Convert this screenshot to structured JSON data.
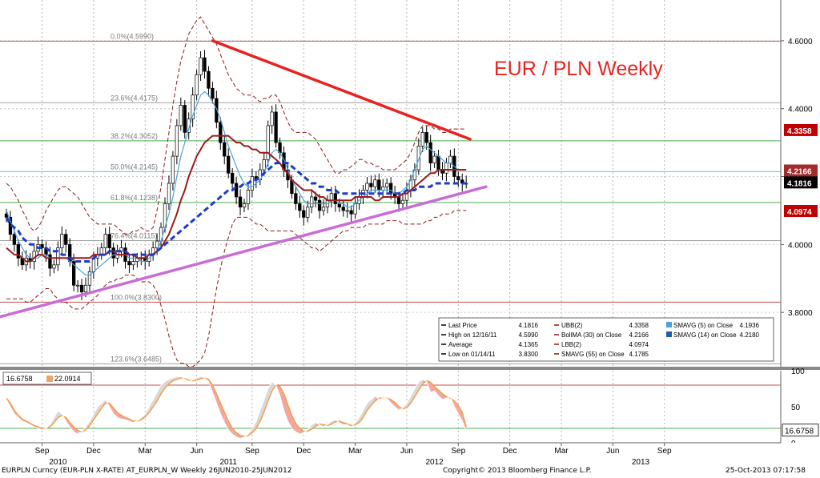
{
  "chart_data": {
    "type": "line",
    "title": "EUR / PLN Weekly",
    "price_panel": {
      "ylim": [
        3.64,
        4.72
      ],
      "ytick_labels": [
        "4.6000",
        "4.4000",
        "4.2000",
        "4.0000",
        "3.8000"
      ],
      "ytick_values": [
        4.6,
        4.4,
        4.2,
        4.0,
        3.8
      ],
      "fibonacci": [
        {
          "label": "0.0%(4.5990)",
          "value": 4.599,
          "color": "#c0504d"
        },
        {
          "label": "23.6%(4.4175)",
          "value": 4.4175,
          "color": "#a0a0a0"
        },
        {
          "label": "38.2%(4.3052)",
          "value": 4.3052,
          "color": "#4caf50"
        },
        {
          "label": "50.0%(4.2145)",
          "value": 4.2145,
          "color": "#5ec8e8"
        },
        {
          "label": "61.8%(4.1238)",
          "value": 4.1238,
          "color": "#4caf50"
        },
        {
          "label": "76.4%(4.0115)",
          "value": 4.0115,
          "color": "#a0a0a0"
        },
        {
          "label": "100.0%(3.8300)",
          "value": 3.83,
          "color": "#c0504d"
        },
        {
          "label": "123.6%(3.6485)",
          "value": 3.6485,
          "color": "#a0a0a0"
        }
      ],
      "price_labels": [
        {
          "text": "4.3358",
          "value": 4.3358,
          "color": "#c00000"
        },
        {
          "text": "4.2166",
          "value": 4.2166,
          "color": "#a52a2a"
        },
        {
          "text": "4.1816",
          "value": 4.1816,
          "color": "#000000"
        },
        {
          "text": "4.0974",
          "value": 4.0974,
          "color": "#c00000"
        }
      ],
      "close": [
        4.08,
        4.03,
        4.0,
        3.96,
        3.94,
        3.96,
        3.95,
        3.98,
        4.0,
        3.99,
        3.97,
        3.93,
        3.94,
        3.99,
        4.03,
        4.0,
        3.95,
        3.88,
        3.88,
        3.86,
        3.88,
        3.92,
        3.96,
        3.97,
        3.99,
        4.03,
        3.99,
        3.96,
        3.98,
        3.99,
        3.95,
        3.94,
        3.95,
        3.96,
        3.96,
        3.95,
        3.97,
        3.99,
        4.01,
        4.05,
        4.12,
        4.18,
        4.26,
        4.35,
        4.41,
        4.33,
        4.37,
        4.44,
        4.5,
        4.55,
        4.51,
        4.46,
        4.43,
        4.36,
        4.3,
        4.26,
        4.21,
        4.18,
        4.14,
        4.11,
        4.12,
        4.16,
        4.2,
        4.19,
        4.22,
        4.25,
        4.35,
        4.39,
        4.3,
        4.27,
        4.22,
        4.19,
        4.15,
        4.12,
        4.1,
        4.08,
        4.11,
        4.14,
        4.13,
        4.1,
        4.11,
        4.13,
        4.15,
        4.12,
        4.11,
        4.1,
        4.1,
        4.09,
        4.12,
        4.14,
        4.16,
        4.18,
        4.17,
        4.19,
        4.16,
        4.17,
        4.18,
        4.15,
        4.14,
        4.12,
        4.13,
        4.16,
        4.19,
        4.22,
        4.29,
        4.33,
        4.3,
        4.24,
        4.26,
        4.22,
        4.21,
        4.24,
        4.26,
        4.2,
        4.19,
        4.18,
        4.18
      ],
      "bb_upper": [
        4.18,
        4.17,
        4.15,
        4.13,
        4.1,
        4.08,
        4.05,
        4.04,
        4.05,
        4.07,
        4.1,
        4.12,
        4.14,
        4.16,
        4.17,
        4.17,
        4.16,
        4.15,
        4.14,
        4.12,
        4.1,
        4.08,
        4.07,
        4.06,
        4.06,
        4.06,
        4.06,
        4.06,
        4.05,
        4.04,
        4.03,
        4.03,
        4.04,
        4.04,
        4.05,
        4.04,
        4.04,
        4.05,
        4.1,
        4.17,
        4.25,
        4.33,
        4.41,
        4.48,
        4.54,
        4.58,
        4.62,
        4.64,
        4.66,
        4.67,
        4.65,
        4.63,
        4.61,
        4.59,
        4.56,
        4.53,
        4.5,
        4.48,
        4.46,
        4.45,
        4.44,
        4.44,
        4.44,
        4.43,
        4.42,
        4.43,
        4.43,
        4.44,
        4.44,
        4.42,
        4.39,
        4.36,
        4.34,
        4.33,
        4.33,
        4.33,
        4.33,
        4.32,
        4.31,
        4.29,
        4.27,
        4.25,
        4.23,
        4.21,
        4.21,
        4.22,
        4.22,
        4.23,
        4.24,
        4.25,
        4.25,
        4.24,
        4.24,
        4.23,
        4.23,
        4.22,
        4.22,
        4.22,
        4.22,
        4.23,
        4.24,
        4.25,
        4.27,
        4.3,
        4.33,
        4.35,
        4.35,
        4.35,
        4.34,
        4.34,
        4.33,
        4.33,
        4.34,
        4.34,
        4.34,
        4.34,
        4.34
      ],
      "bb_mid": [
        3.99,
        3.98,
        3.97,
        3.97,
        3.96,
        3.95,
        3.95,
        3.96,
        3.97,
        3.97,
        3.96,
        3.96,
        3.96,
        3.96,
        3.96,
        3.96,
        3.96,
        3.96,
        3.96,
        3.96,
        3.96,
        3.96,
        3.97,
        3.97,
        3.97,
        3.97,
        3.98,
        3.98,
        3.97,
        3.97,
        3.97,
        3.97,
        3.97,
        3.96,
        3.96,
        3.96,
        3.97,
        3.97,
        3.98,
        3.99,
        4.01,
        4.03,
        4.06,
        4.09,
        4.13,
        4.16,
        4.2,
        4.23,
        4.26,
        4.28,
        4.3,
        4.31,
        4.32,
        4.32,
        4.32,
        4.32,
        4.32,
        4.31,
        4.3,
        4.3,
        4.29,
        4.29,
        4.28,
        4.28,
        4.27,
        4.27,
        4.27,
        4.26,
        4.25,
        4.24,
        4.22,
        4.21,
        4.19,
        4.18,
        4.17,
        4.16,
        4.16,
        4.16,
        4.15,
        4.14,
        4.14,
        4.13,
        4.13,
        4.13,
        4.13,
        4.13,
        4.13,
        4.13,
        4.14,
        4.14,
        4.14,
        4.14,
        4.14,
        4.13,
        4.13,
        4.14,
        4.14,
        4.14,
        4.14,
        4.14,
        4.15,
        4.15,
        4.16,
        4.17,
        4.18,
        4.19,
        4.2,
        4.21,
        4.21,
        4.22,
        4.22,
        4.22,
        4.22,
        4.22,
        4.22,
        4.22,
        4.22
      ],
      "bb_lower": [
        3.84,
        3.84,
        3.84,
        3.84,
        3.84,
        3.83,
        3.83,
        3.84,
        3.85,
        3.86,
        3.87,
        3.87,
        3.85,
        3.84,
        3.83,
        3.83,
        3.82,
        3.81,
        3.81,
        3.81,
        3.82,
        3.83,
        3.84,
        3.85,
        3.87,
        3.88,
        3.89,
        3.89,
        3.9,
        3.9,
        3.91,
        3.91,
        3.91,
        3.9,
        3.89,
        3.89,
        3.89,
        3.88,
        3.86,
        3.82,
        3.78,
        3.73,
        3.69,
        3.66,
        3.65,
        3.65,
        3.64,
        3.64,
        3.65,
        3.66,
        3.68,
        3.73,
        3.8,
        3.87,
        3.93,
        3.98,
        4.02,
        4.06,
        4.08,
        4.08,
        4.08,
        4.08,
        4.07,
        4.06,
        4.06,
        4.05,
        4.04,
        4.04,
        4.04,
        4.04,
        4.04,
        4.04,
        4.04,
        4.03,
        4.02,
        4.01,
        4.0,
        3.99,
        3.99,
        3.98,
        3.99,
        4.0,
        4.01,
        4.02,
        4.03,
        4.04,
        4.04,
        4.05,
        4.05,
        4.05,
        4.05,
        4.06,
        4.06,
        4.06,
        4.06,
        4.06,
        4.07,
        4.07,
        4.07,
        4.07,
        4.06,
        4.06,
        4.06,
        4.06,
        4.06,
        4.06,
        4.07,
        4.07,
        4.08,
        4.08,
        4.09,
        4.09,
        4.09,
        4.1,
        4.1,
        4.1,
        4.1
      ],
      "sma55": [
        4.08,
        4.06,
        4.05,
        4.04,
        4.02,
        4.01,
        4.0,
        4.0,
        3.99,
        3.99,
        3.99,
        3.98,
        3.98,
        3.98,
        3.97,
        3.97,
        3.96,
        3.95,
        3.95,
        3.95,
        3.95,
        3.95,
        3.96,
        3.97,
        3.97,
        3.97,
        3.98,
        3.98,
        3.98,
        3.98,
        3.98,
        3.97,
        3.97,
        3.97,
        3.97,
        3.97,
        3.97,
        3.97,
        3.98,
        3.99,
        4.0,
        4.01,
        4.02,
        4.03,
        4.04,
        4.05,
        4.06,
        4.07,
        4.08,
        4.09,
        4.1,
        4.11,
        4.12,
        4.13,
        4.14,
        4.15,
        4.16,
        4.16,
        4.17,
        4.17,
        4.18,
        4.18,
        4.19,
        4.19,
        4.2,
        4.21,
        4.22,
        4.23,
        4.24,
        4.24,
        4.24,
        4.24,
        4.23,
        4.22,
        4.21,
        4.2,
        4.19,
        4.18,
        4.18,
        4.17,
        4.17,
        4.16,
        4.16,
        4.16,
        4.15,
        4.15,
        4.15,
        4.15,
        4.15,
        4.15,
        4.15,
        4.15,
        4.15,
        4.15,
        4.15,
        4.15,
        4.15,
        4.15,
        4.15,
        4.15,
        4.15,
        4.16,
        4.16,
        4.16,
        4.17,
        4.17,
        4.17,
        4.17,
        4.18,
        4.18,
        4.18,
        4.18,
        4.18,
        4.18,
        4.18,
        4.18,
        4.18
      ],
      "sma14": [
        4.1,
        4.07,
        4.04,
        4.01,
        3.99,
        3.97,
        3.96,
        3.96,
        3.96,
        3.97,
        3.97,
        3.96,
        3.96,
        3.96,
        3.96,
        3.96,
        3.95,
        3.94,
        3.93,
        3.92,
        3.91,
        3.91,
        3.92,
        3.93,
        3.94,
        3.95,
        3.96,
        3.97,
        3.97,
        3.97,
        3.97,
        3.96,
        3.96,
        3.96,
        3.95,
        3.95,
        3.96,
        3.97,
        3.98,
        4.01,
        4.05,
        4.09,
        4.14,
        4.2,
        4.26,
        4.3,
        4.34,
        4.38,
        4.41,
        4.44,
        4.45,
        4.44,
        4.42,
        4.4,
        4.37,
        4.33,
        4.29,
        4.26,
        4.23,
        4.2,
        4.18,
        4.17,
        4.17,
        4.18,
        4.19,
        4.21,
        4.24,
        4.27,
        4.28,
        4.27,
        4.25,
        4.22,
        4.19,
        4.17,
        4.15,
        4.13,
        4.12,
        4.12,
        4.12,
        4.12,
        4.12,
        4.12,
        4.13,
        4.13,
        4.12,
        4.12,
        4.11,
        4.11,
        4.12,
        4.13,
        4.14,
        4.15,
        4.16,
        4.16,
        4.16,
        4.16,
        4.16,
        4.16,
        4.15,
        4.15,
        4.16,
        4.17,
        4.19,
        4.22,
        4.25,
        4.28,
        4.29,
        4.28,
        4.27,
        4.26,
        4.25,
        4.24,
        4.24,
        4.23,
        4.22,
        4.22,
        4.22
      ]
    },
    "trendlines": [
      {
        "from_week": 52,
        "from_value": 4.6,
        "to_week": 117,
        "to_value": 4.31,
        "color": "#e8231f"
      },
      {
        "from_week": -7,
        "from_value": 3.77,
        "to_week": 121,
        "to_value": 4.17,
        "color": "#c86dd6"
      }
    ],
    "annotation": "EUR / PLN Weekly",
    "legend": {
      "col1": [
        {
          "label": "Last Price",
          "value": "4.1816"
        },
        {
          "label": "High on 12/16/11",
          "value": "4.5990"
        },
        {
          "label": "Average",
          "value": "4.1365"
        },
        {
          "label": "Low on 01/14/11",
          "value": "3.8300"
        }
      ],
      "col2": [
        {
          "label": "UBB(2)",
          "value": "4.3358"
        },
        {
          "label": "BollMA (30) on Close",
          "value": "4.2166"
        },
        {
          "label": "LBB(2)",
          "value": "4.0974"
        },
        {
          "label": "SMAVG (55) on Close",
          "value": "4.1785"
        }
      ],
      "col3": [
        {
          "label": "SMAVG (5) on Close",
          "value": "4.1936",
          "color": "#4aa3df"
        },
        {
          "label": "SMAVG (14) on Close",
          "value": "4.2180",
          "color": "#1f5fa8"
        }
      ]
    },
    "oscillator_panel": {
      "ylim": [
        0,
        100
      ],
      "ytick_labels": [
        "100",
        "50",
        "0"
      ],
      "ytick_values": [
        100,
        50,
        0
      ],
      "levels": [
        80,
        20
      ],
      "legend": [
        {
          "value": "16.6758",
          "color": "#ffffff"
        },
        {
          "value": "22.0914",
          "color": "#f4a460"
        }
      ],
      "last_label": "16.6758",
      "k": [
        60,
        50,
        40,
        35,
        30,
        28,
        25,
        22,
        20,
        18,
        20,
        25,
        35,
        45,
        40,
        30,
        22,
        15,
        12,
        15,
        22,
        30,
        40,
        50,
        55,
        60,
        50,
        40,
        35,
        33,
        32,
        30,
        28,
        30,
        35,
        40,
        50,
        60,
        70,
        80,
        85,
        88,
        90,
        92,
        92,
        88,
        85,
        87,
        90,
        92,
        90,
        85,
        70,
        55,
        40,
        28,
        18,
        12,
        8,
        6,
        8,
        12,
        20,
        30,
        45,
        60,
        75,
        85,
        80,
        65,
        45,
        30,
        20,
        15,
        12,
        14,
        18,
        25,
        28,
        25,
        22,
        25,
        30,
        32,
        28,
        25,
        25,
        22,
        28,
        35,
        45,
        55,
        60,
        65,
        60,
        62,
        62,
        55,
        50,
        45,
        48,
        55,
        65,
        75,
        85,
        88,
        85,
        70,
        72,
        65,
        60,
        62,
        64,
        50,
        40,
        30,
        17
      ],
      "d": [
        62,
        55,
        45,
        38,
        33,
        30,
        27,
        24,
        22,
        20,
        20,
        22,
        28,
        35,
        38,
        35,
        28,
        22,
        17,
        15,
        18,
        24,
        32,
        40,
        48,
        55,
        55,
        48,
        42,
        38,
        35,
        33,
        30,
        30,
        32,
        36,
        42,
        50,
        58,
        68,
        76,
        82,
        86,
        88,
        90,
        89,
        87,
        86,
        87,
        89,
        90,
        88,
        80,
        68,
        55,
        42,
        30,
        20,
        14,
        10,
        9,
        10,
        14,
        20,
        30,
        43,
        58,
        72,
        80,
        78,
        68,
        53,
        38,
        27,
        20,
        16,
        16,
        19,
        23,
        26,
        25,
        24,
        26,
        29,
        30,
        28,
        26,
        24,
        25,
        28,
        35,
        45,
        52,
        58,
        62,
        62,
        62,
        60,
        56,
        50,
        47,
        49,
        55,
        64,
        73,
        82,
        86,
        84,
        78,
        73,
        68,
        64,
        62,
        58,
        52,
        42,
        22
      ]
    },
    "x_axis": {
      "months": [
        {
          "label": "Sep",
          "week": 9
        },
        {
          "label": "Dec",
          "week": 22
        },
        {
          "label": "Mar",
          "week": 35
        },
        {
          "label": "Jun",
          "week": 48
        },
        {
          "label": "Sep",
          "week": 62
        },
        {
          "label": "Dec",
          "week": 75
        },
        {
          "label": "Mar",
          "week": 88
        },
        {
          "label": "Jun",
          "week": 101
        },
        {
          "label": "Sep",
          "week": 114
        },
        {
          "label": "Dec",
          "week": 127
        },
        {
          "label": "Mar",
          "week": 140
        },
        {
          "label": "Jun",
          "week": 153
        },
        {
          "label": "Sep",
          "week": 166
        }
      ],
      "years": [
        {
          "label": "2010",
          "week": 13
        },
        {
          "label": "2011",
          "week": 56
        },
        {
          "label": "2012",
          "week": 108
        },
        {
          "label": "2013",
          "week": 160
        }
      ]
    }
  },
  "footer": {
    "left": "EURPLN Curncy (EUR-PLN X-RATE) AT_EURPLN_W  Weekly 26JUN2010-25JUN2012",
    "center": "Copyright© 2013 Bloomberg Finance L.P.",
    "right": "25-Oct-2013 07:17:58"
  }
}
